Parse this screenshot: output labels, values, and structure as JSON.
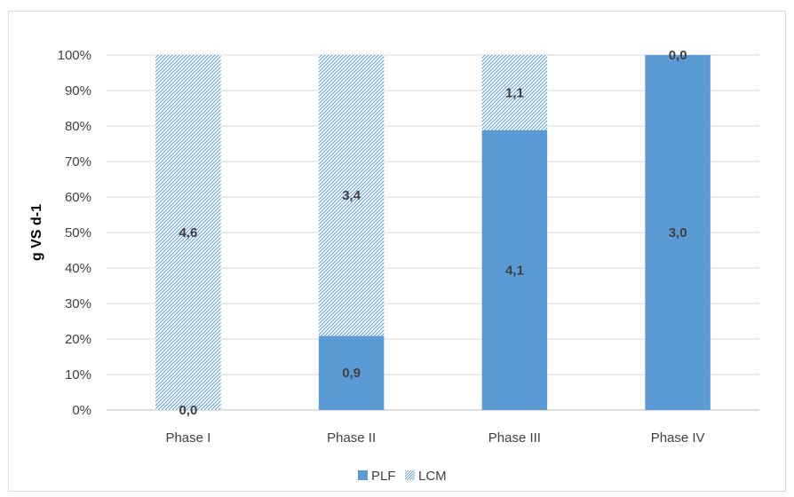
{
  "chart_data": {
    "type": "bar",
    "stacked": "percent",
    "ylabel": "g VS d-1",
    "ylim": [
      0,
      100
    ],
    "yticks": [
      "0%",
      "10%",
      "20%",
      "30%",
      "40%",
      "50%",
      "60%",
      "70%",
      "80%",
      "90%",
      "100%"
    ],
    "categories": [
      "Phase I",
      "Phase II",
      "Phase III",
      "Phase IV"
    ],
    "series": [
      {
        "name": "PLF",
        "values": [
          0.0,
          0.9,
          4.1,
          3.0
        ],
        "labels": [
          "0,0",
          "0,9",
          "4,1",
          "3,0"
        ],
        "color": "#5b9bd5",
        "pattern": "solid"
      },
      {
        "name": "LCM",
        "values": [
          4.6,
          3.4,
          1.1,
          0.0
        ],
        "labels": [
          "4,6",
          "3,4",
          "1,1",
          "0,0"
        ],
        "color": "#5b9bd5",
        "pattern": "diagonal-hatch"
      }
    ],
    "legend_position": "bottom",
    "grid": true
  }
}
